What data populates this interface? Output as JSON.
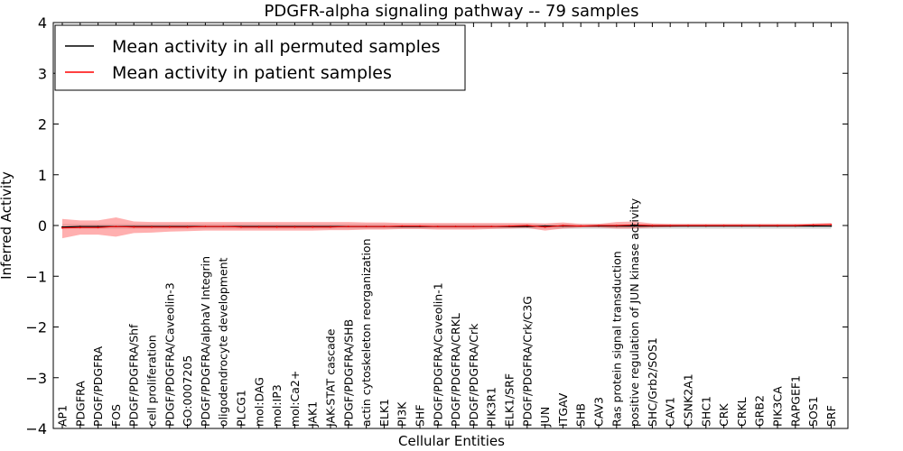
{
  "chart_data": {
    "type": "line",
    "title": "PDGFR-alpha signaling pathway -- 79 samples",
    "xlabel": "Cellular Entities",
    "ylabel": "Inferred Activity",
    "ylim": [
      -4,
      4
    ],
    "yticks": [
      -4,
      -3,
      -2,
      -1,
      0,
      1,
      2,
      3,
      4
    ],
    "grid": false,
    "legend_position": "top-left",
    "categories": [
      "AP1",
      "PDGFRA",
      "PDGF/PDGFRA",
      "FOS",
      "PDGF/PDGFRA/Shf",
      "cell proliferation",
      "PDGF/PDGFRA/Caveolin-3",
      "GO:0007205",
      "PDGF/PDGFRA/alphaV Integrin",
      "oligodendrocyte development",
      "PLCG1",
      "mol:DAG",
      "mol:IP3",
      "mol:Ca2+",
      "JAK1",
      "JAK-STAT cascade",
      "PDGF/PDGFRA/SHB",
      "actin cytoskeleton reorganization",
      "ELK1",
      "PI3K",
      "SHF",
      "PDGF/PDGFRA/Caveolin-1",
      "PDGF/PDGFRA/CRKL",
      "PDGF/PDGFRA/Crk",
      "PIK3R1",
      "ELK1/SRF",
      "PDGF/PDGFRA/Crk/C3G",
      "JUN",
      "ITGAV",
      "SHB",
      "CAV3",
      "Ras protein signal transduction",
      "positive regulation of JUN kinase activity",
      "SHC/Grb2/SOS1",
      "CAV1",
      "CSNK2A1",
      "SHC1",
      "CRK",
      "CRKL",
      "GRB2",
      "PIK3CA",
      "RAPGEF1",
      "SOS1",
      "SRF"
    ],
    "series": [
      {
        "name": "Mean activity in all permuted samples",
        "color": "#000000",
        "values": [
          -0.03,
          -0.02,
          -0.02,
          -0.02,
          -0.02,
          -0.02,
          -0.02,
          -0.02,
          -0.02,
          -0.02,
          -0.02,
          -0.02,
          -0.02,
          -0.02,
          -0.02,
          -0.02,
          -0.02,
          -0.02,
          -0.02,
          -0.02,
          -0.02,
          -0.02,
          -0.02,
          -0.02,
          -0.02,
          -0.02,
          -0.02,
          -0.01,
          -0.01,
          -0.01,
          -0.01,
          -0.01,
          -0.01,
          -0.01,
          -0.01,
          -0.01,
          -0.01,
          -0.01,
          -0.01,
          -0.01,
          -0.01,
          -0.01,
          -0.01,
          -0.01
        ],
        "lower": [
          -0.07,
          -0.07,
          -0.07,
          -0.07,
          -0.07,
          -0.07,
          -0.07,
          -0.07,
          -0.07,
          -0.07,
          -0.07,
          -0.07,
          -0.07,
          -0.07,
          -0.07,
          -0.07,
          -0.07,
          -0.07,
          -0.07,
          -0.07,
          -0.07,
          -0.07,
          -0.07,
          -0.07,
          -0.07,
          -0.07,
          -0.07,
          -0.07,
          -0.07,
          -0.07,
          -0.07,
          -0.07,
          -0.07,
          -0.07,
          -0.07,
          -0.07,
          -0.07,
          -0.07,
          -0.07,
          -0.07,
          -0.07,
          -0.07,
          -0.07,
          -0.07
        ],
        "upper": [
          0.03,
          0.03,
          0.03,
          0.03,
          0.03,
          0.03,
          0.03,
          0.03,
          0.03,
          0.03,
          0.03,
          0.03,
          0.03,
          0.03,
          0.03,
          0.03,
          0.03,
          0.03,
          0.03,
          0.03,
          0.03,
          0.03,
          0.03,
          0.03,
          0.03,
          0.03,
          0.03,
          0.03,
          0.03,
          0.03,
          0.03,
          0.03,
          0.03,
          0.03,
          0.03,
          0.03,
          0.03,
          0.03,
          0.03,
          0.03,
          0.03,
          0.03,
          0.03,
          0.03
        ]
      },
      {
        "name": "Mean activity in patient samples",
        "color": "#ff0000",
        "values": [
          -0.05,
          -0.04,
          -0.04,
          -0.02,
          -0.03,
          -0.03,
          -0.03,
          -0.03,
          -0.02,
          -0.02,
          -0.03,
          -0.03,
          -0.03,
          -0.03,
          -0.03,
          -0.03,
          -0.02,
          -0.02,
          -0.02,
          -0.01,
          -0.01,
          -0.02,
          -0.02,
          -0.02,
          -0.02,
          -0.01,
          0.0,
          -0.03,
          0.0,
          -0.01,
          0.0,
          0.0,
          0.01,
          0.0,
          0.0,
          0.0,
          0.0,
          0.0,
          0.0,
          0.0,
          0.0,
          0.0,
          0.01,
          0.02
        ],
        "lower": [
          -0.25,
          -0.18,
          -0.18,
          -0.22,
          -0.15,
          -0.14,
          -0.12,
          -0.11,
          -0.1,
          -0.1,
          -0.1,
          -0.1,
          -0.1,
          -0.1,
          -0.1,
          -0.09,
          -0.09,
          -0.08,
          -0.08,
          -0.07,
          -0.07,
          -0.08,
          -0.08,
          -0.08,
          -0.07,
          -0.06,
          -0.05,
          -0.1,
          -0.06,
          -0.04,
          -0.04,
          -0.06,
          -0.06,
          -0.04,
          -0.03,
          -0.02,
          -0.02,
          -0.02,
          -0.02,
          -0.02,
          -0.02,
          -0.01,
          -0.01,
          0.0
        ],
        "upper": [
          0.13,
          0.1,
          0.1,
          0.16,
          0.08,
          0.07,
          0.07,
          0.07,
          0.07,
          0.07,
          0.07,
          0.07,
          0.07,
          0.07,
          0.07,
          0.07,
          0.07,
          0.06,
          0.06,
          0.05,
          0.05,
          0.05,
          0.05,
          0.05,
          0.05,
          0.05,
          0.05,
          0.04,
          0.06,
          0.03,
          0.03,
          0.07,
          0.08,
          0.04,
          0.03,
          0.03,
          0.03,
          0.03,
          0.03,
          0.03,
          0.03,
          0.03,
          0.04,
          0.05
        ]
      }
    ]
  }
}
